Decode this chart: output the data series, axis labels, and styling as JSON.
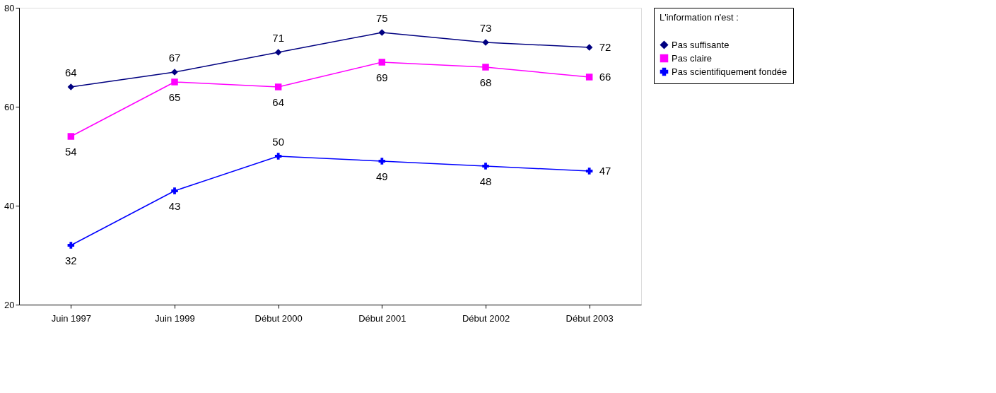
{
  "chart_data": {
    "type": "line",
    "legend_title": "L'information n'est :",
    "categories": [
      "Juin 1997",
      "Juin 1999",
      "Début 2000",
      "Début 2001",
      "Début 2002",
      "Début 2003"
    ],
    "series": [
      {
        "name": "Pas suffisante",
        "color": "#000080",
        "marker": "diamond",
        "values": [
          64,
          67,
          71,
          75,
          73,
          72
        ]
      },
      {
        "name": "Pas claire",
        "color": "#ff00ff",
        "marker": "square",
        "values": [
          54,
          65,
          64,
          69,
          68,
          66
        ]
      },
      {
        "name": "Pas scientifiquement fondée",
        "color": "#0000ff",
        "marker": "cross",
        "values": [
          32,
          43,
          50,
          49,
          48,
          47
        ]
      }
    ],
    "ylim": [
      20,
      80
    ],
    "yticks": [
      20,
      40,
      60,
      80
    ],
    "grid": false,
    "legend": "right",
    "data_labels": true,
    "line_style": "solid"
  }
}
